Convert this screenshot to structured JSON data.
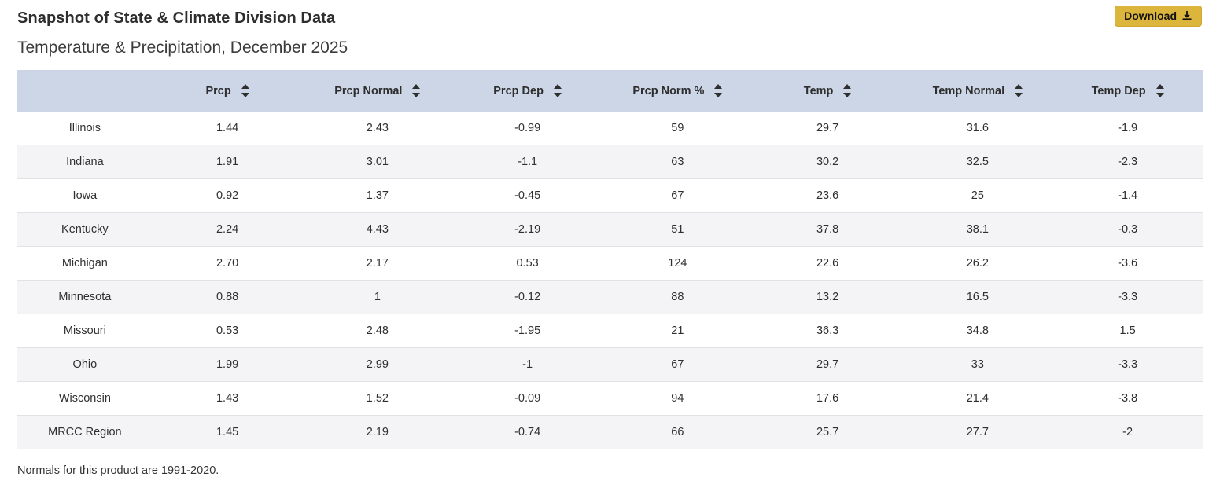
{
  "page": {
    "title": "Snapshot of State & Climate Division Data",
    "subtitle": "Temperature & Precipitation, December 2025",
    "footnote": "Normals for this product are 1991-2020."
  },
  "toolbar": {
    "download_label": "Download",
    "download_icon": "download-tray-arrow"
  },
  "colors": {
    "header_bg": "#ccd6e6",
    "row_alt_bg": "#f4f4f7",
    "download_bg": "#dcb53c",
    "text": "#333333"
  },
  "table": {
    "columns": [
      "",
      "Prcp",
      "Prcp Normal",
      "Prcp Dep",
      "Prcp Norm %",
      "Temp",
      "Temp Normal",
      "Temp Dep"
    ],
    "sortable_columns": [
      "Prcp",
      "Prcp Normal",
      "Prcp Dep",
      "Prcp Norm %",
      "Temp",
      "Temp Normal",
      "Temp Dep"
    ],
    "rows": [
      {
        "name": "Illinois",
        "values": [
          "1.44",
          "2.43",
          "-0.99",
          "59",
          "29.7",
          "31.6",
          "-1.9"
        ]
      },
      {
        "name": "Indiana",
        "values": [
          "1.91",
          "3.01",
          "-1.1",
          "63",
          "30.2",
          "32.5",
          "-2.3"
        ]
      },
      {
        "name": "Iowa",
        "values": [
          "0.92",
          "1.37",
          "-0.45",
          "67",
          "23.6",
          "25",
          "-1.4"
        ]
      },
      {
        "name": "Kentucky",
        "values": [
          "2.24",
          "4.43",
          "-2.19",
          "51",
          "37.8",
          "38.1",
          "-0.3"
        ]
      },
      {
        "name": "Michigan",
        "values": [
          "2.70",
          "2.17",
          "0.53",
          "124",
          "22.6",
          "26.2",
          "-3.6"
        ]
      },
      {
        "name": "Minnesota",
        "values": [
          "0.88",
          "1",
          "-0.12",
          "88",
          "13.2",
          "16.5",
          "-3.3"
        ]
      },
      {
        "name": "Missouri",
        "values": [
          "0.53",
          "2.48",
          "-1.95",
          "21",
          "36.3",
          "34.8",
          "1.5"
        ]
      },
      {
        "name": "Ohio",
        "values": [
          "1.99",
          "2.99",
          "-1",
          "67",
          "29.7",
          "33",
          "-3.3"
        ]
      },
      {
        "name": "Wisconsin",
        "values": [
          "1.43",
          "1.52",
          "-0.09",
          "94",
          "17.6",
          "21.4",
          "-3.8"
        ]
      },
      {
        "name": "MRCC Region",
        "values": [
          "1.45",
          "2.19",
          "-0.74",
          "66",
          "25.7",
          "27.7",
          "-2"
        ]
      }
    ]
  }
}
